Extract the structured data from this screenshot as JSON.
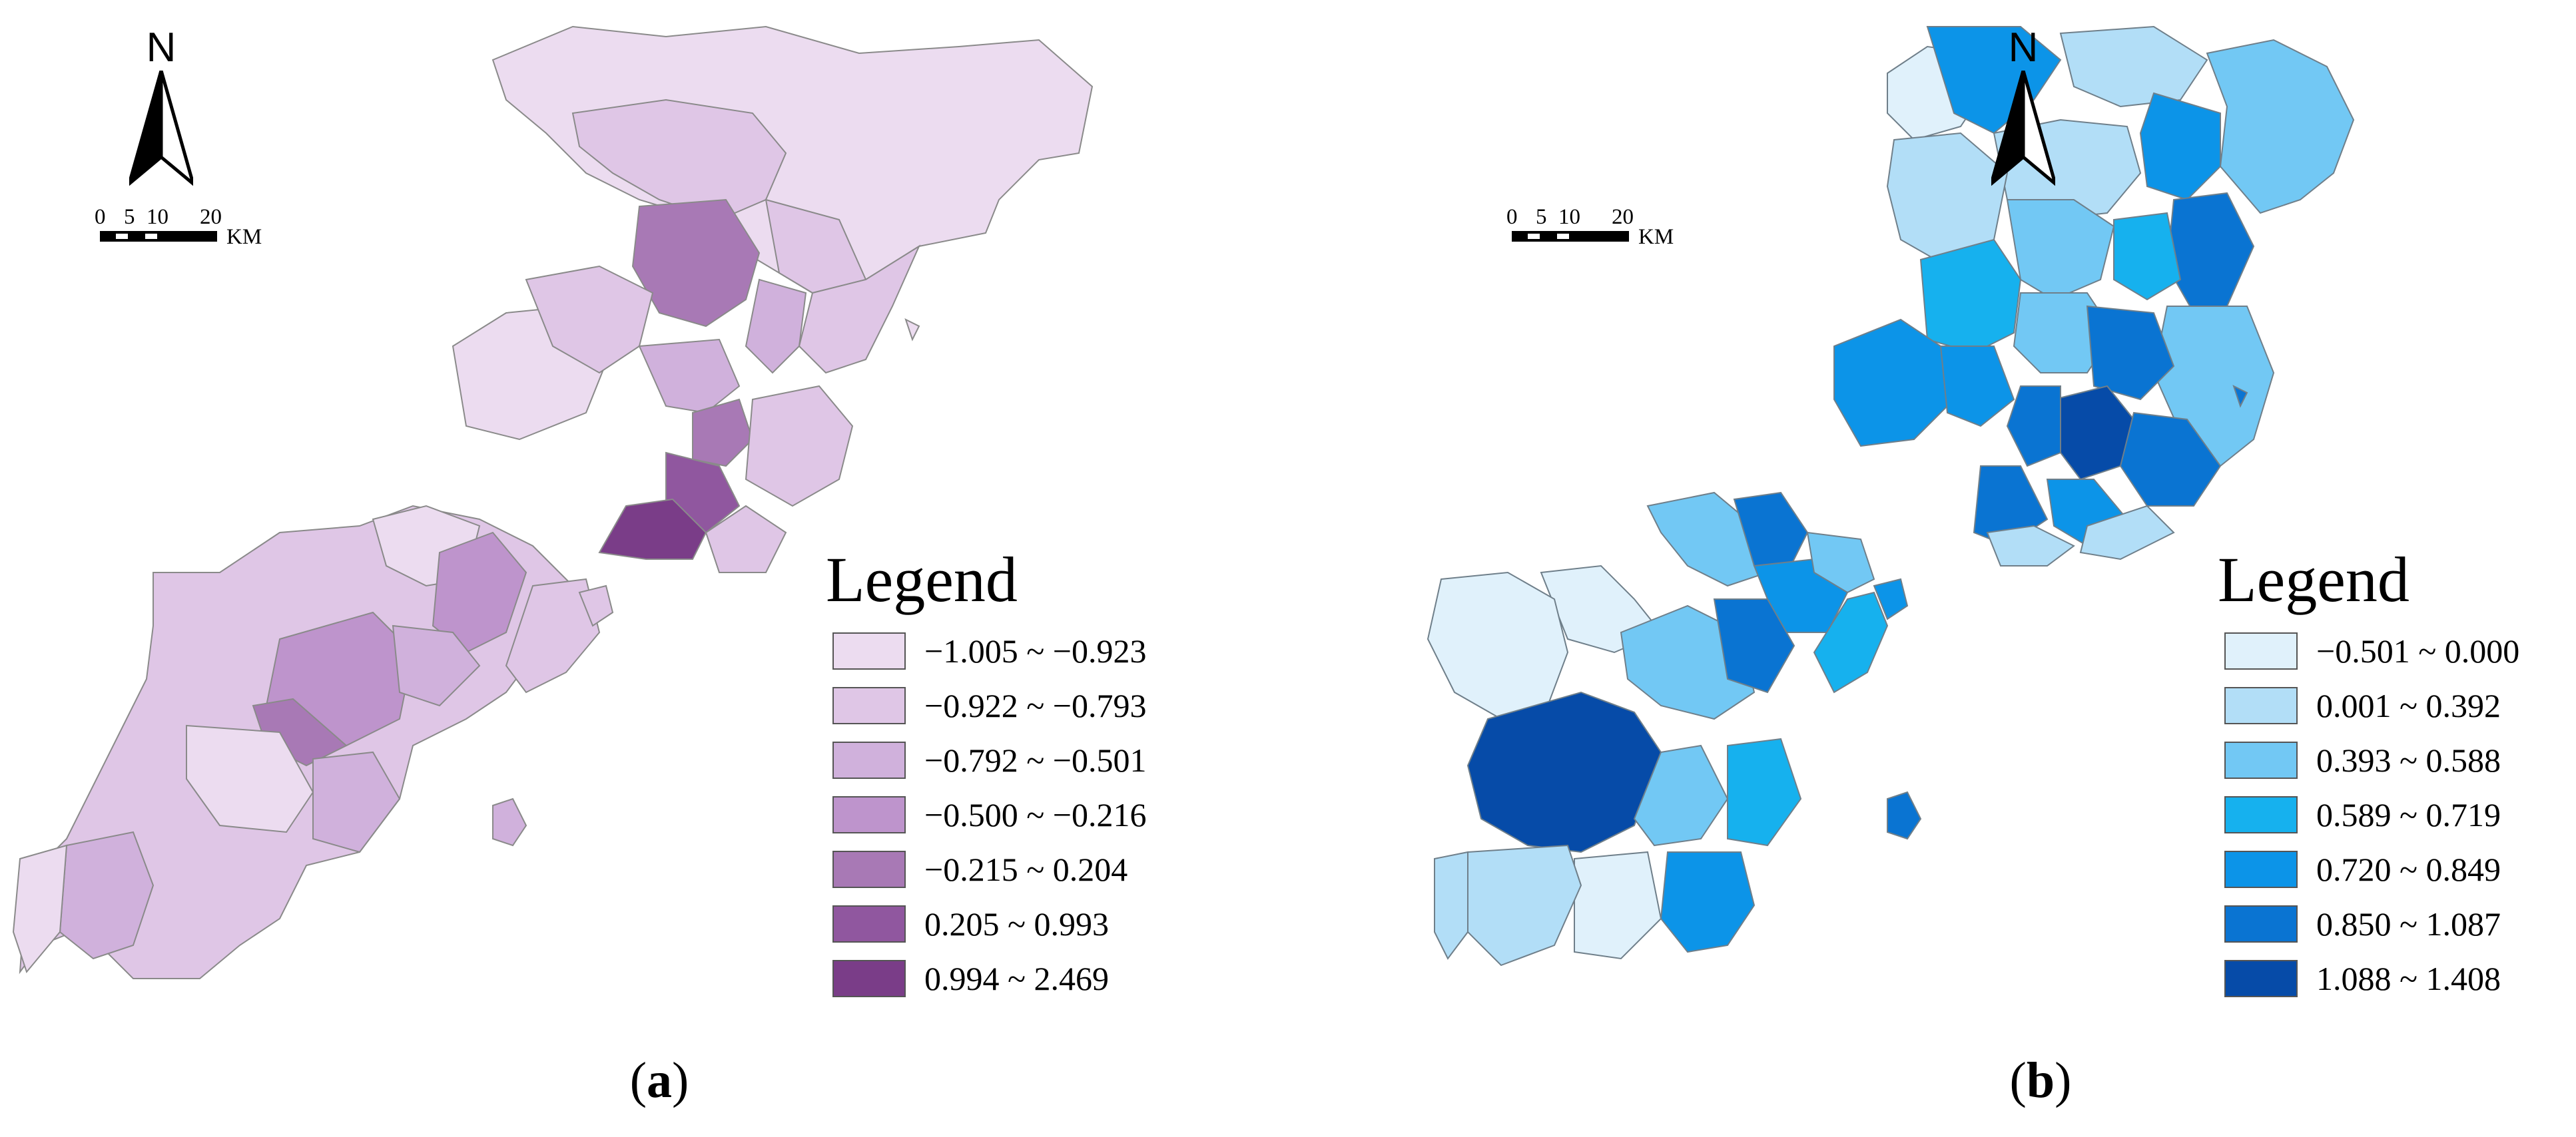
{
  "north_label": "N",
  "scale_bar": {
    "ticks": [
      "0",
      "5",
      "10",
      "20"
    ],
    "unit": "KM"
  },
  "legend_title": "Legend",
  "panels": [
    {
      "caption_letter": "a",
      "legend": [
        {
          "label": "−1.005 ~ −0.923",
          "color": "#ecdcf0"
        },
        {
          "label": "−0.922 ~ −0.793",
          "color": "#dfc6e6"
        },
        {
          "label": "−0.792 ~ −0.501",
          "color": "#d0b1dc"
        },
        {
          "label": "−0.500 ~ −0.216",
          "color": "#be94cc"
        },
        {
          "label": "−0.215 ~ 0.204",
          "color": "#a879b5"
        },
        {
          "label": "0.205 ~ 0.993",
          "color": "#90579f"
        },
        {
          "label": "0.994 ~ 2.469",
          "color": "#7a3d88"
        }
      ]
    },
    {
      "caption_letter": "b",
      "legend": [
        {
          "label": "−0.501 ~ 0.000",
          "color": "#e0f1fb"
        },
        {
          "label": "0.001 ~ 0.392",
          "color": "#b2def7"
        },
        {
          "label": "0.393 ~ 0.588",
          "color": "#72c8f4"
        },
        {
          "label": "0.589 ~ 0.719",
          "color": "#16b1ee"
        },
        {
          "label": "0.720 ~ 0.849",
          "color": "#0c94e8"
        },
        {
          "label": "0.850 ~ 1.087",
          "color": "#0a74d2"
        },
        {
          "label": "1.088 ~ 1.408",
          "color": "#064ba8"
        }
      ]
    }
  ]
}
